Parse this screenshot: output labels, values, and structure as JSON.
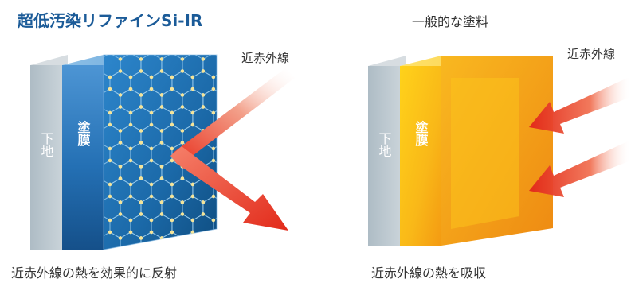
{
  "left_panel": {
    "title": "超低汚染リファインSi-IR",
    "substrate_label": "下地",
    "coating_label": "塗膜",
    "ray_label": "近赤外線",
    "caption": "近赤外線の熱を効果的に反射"
  },
  "right_panel": {
    "title": "一般的な塗料",
    "substrate_label": "下地",
    "coating_label": "塗膜",
    "ray_label": "近赤外線",
    "caption": "近赤外線の熱を吸収"
  },
  "colors": {
    "title_blue": "#1b5b98",
    "text": "#333333",
    "arrow_red": "#e8301e",
    "coating_blue": "#1f78c0",
    "coating_orange": "#f7a516",
    "substrate_gray": "#b8c4cc"
  }
}
